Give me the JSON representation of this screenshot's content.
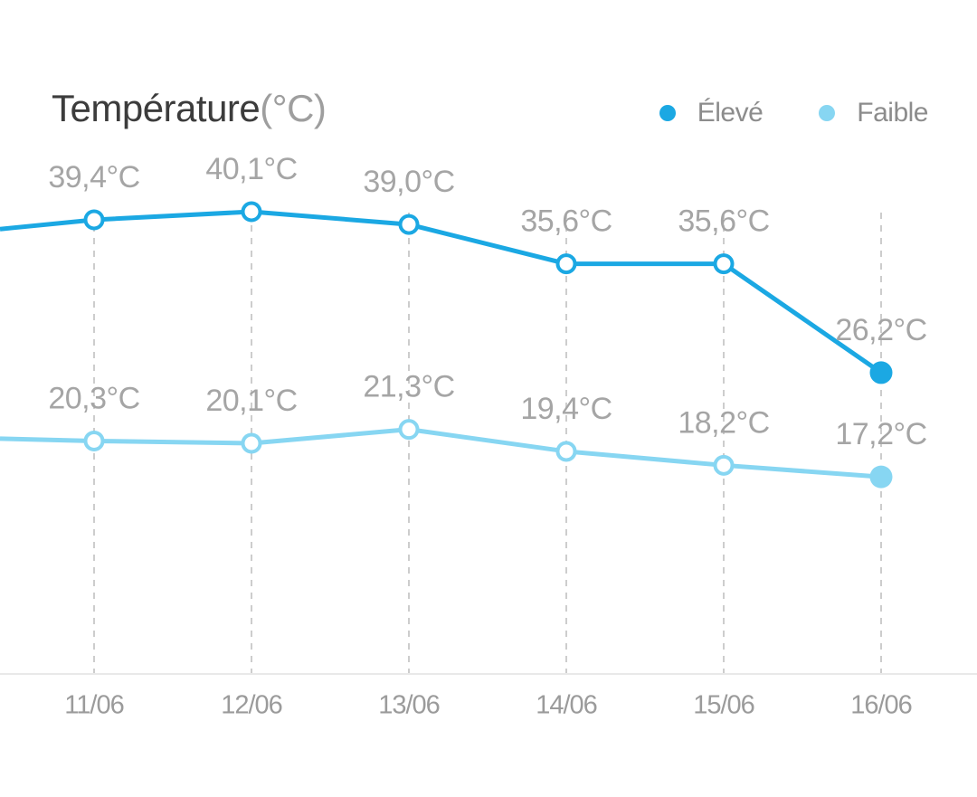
{
  "header": {
    "title": "Température",
    "title_unit": "(°C)",
    "legend": [
      {
        "name": "Élevé",
        "color": "#1ba8e3"
      },
      {
        "name": "Faible",
        "color": "#87d6f2"
      }
    ]
  },
  "chart_data": {
    "type": "line",
    "title": "Température(°C)",
    "categories": [
      "11/06",
      "12/06",
      "13/06",
      "14/06",
      "15/06",
      "16/06"
    ],
    "series": [
      {
        "name": "Élevé",
        "color": "#1ba8e3",
        "values": [
          39.4,
          40.1,
          39.0,
          35.6,
          35.6,
          26.2
        ],
        "labels": [
          "39,4°C",
          "40,1°C",
          "39,0°C",
          "35,6°C",
          "35,6°C",
          "26,2°C"
        ]
      },
      {
        "name": "Faible",
        "color": "#87d6f2",
        "values": [
          20.3,
          20.1,
          21.3,
          19.4,
          18.2,
          17.2
        ],
        "labels": [
          "20,3°C",
          "20,1°C",
          "21,3°C",
          "19,4°C",
          "18,2°C",
          "17,2°C"
        ]
      }
    ],
    "left_edge_entry_values": [
      38.6,
      20.5
    ],
    "unit": "°C",
    "decimal_separator": ",",
    "grid": "vertical-dashed",
    "legend_position": "top-right",
    "marker_style": "open-circle",
    "last_point_style": "filled-circle",
    "colors": {
      "grid_line": "#cdcdcd",
      "axis_line": "#e9e9e9",
      "point_label": "#a5a5a5",
      "axis_label": "#9b9b9b"
    }
  }
}
